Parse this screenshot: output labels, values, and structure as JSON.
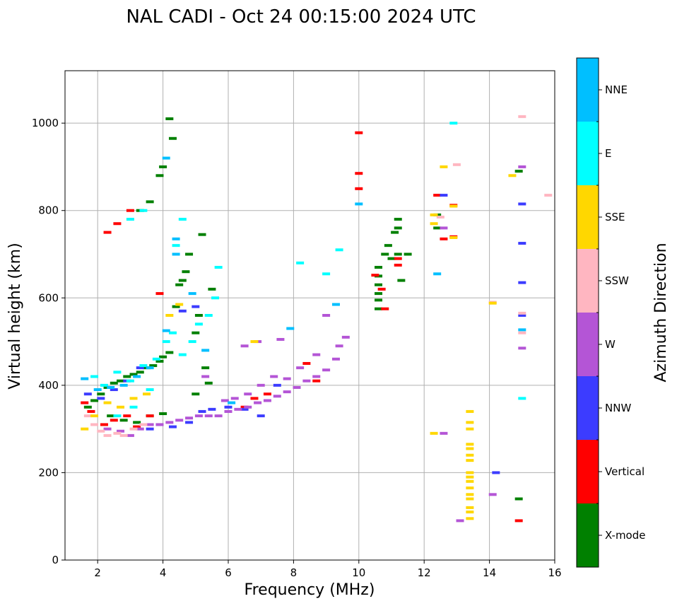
{
  "chart_data": {
    "type": "scatter",
    "title": "NAL CADI - Oct 24 00:15:00 2024 UTC",
    "xlabel": "Frequency (MHz)",
    "ylabel": "Virtual height (km)",
    "xlim": [
      1,
      16
    ],
    "ylim": [
      0,
      1120
    ],
    "xticks": [
      2,
      4,
      6,
      8,
      10,
      12,
      14,
      16
    ],
    "yticks": [
      0,
      200,
      400,
      600,
      800,
      1000
    ],
    "grid": true,
    "colorbar": {
      "label": "Azimuth Direction",
      "categories": [
        {
          "name": "X-mode",
          "color": "#008000"
        },
        {
          "name": "Vertical",
          "color": "#ff0000"
        },
        {
          "name": "NNW",
          "color": "#3c3cff"
        },
        {
          "name": "W",
          "color": "#b455d6"
        },
        {
          "name": "SSW",
          "color": "#ffb6c1"
        },
        {
          "name": "SSE",
          "color": "#ffd700"
        },
        {
          "name": "E",
          "color": "#00ffff"
        },
        {
          "name": "NNE",
          "color": "#00bfff"
        }
      ]
    },
    "series": [
      {
        "name": "X-mode",
        "points": [
          [
            1.7,
            350
          ],
          [
            1.9,
            365
          ],
          [
            2.1,
            380
          ],
          [
            2.3,
            395
          ],
          [
            2.5,
            405
          ],
          [
            2.7,
            410
          ],
          [
            2.9,
            420
          ],
          [
            3.1,
            425
          ],
          [
            3.3,
            430
          ],
          [
            3.5,
            440
          ],
          [
            3.7,
            445
          ],
          [
            3.9,
            455
          ],
          [
            4.0,
            465
          ],
          [
            4.2,
            475
          ],
          [
            2.4,
            330
          ],
          [
            2.8,
            320
          ],
          [
            3.2,
            315
          ],
          [
            3.6,
            330
          ],
          [
            4.0,
            335
          ],
          [
            3.3,
            800
          ],
          [
            3.6,
            820
          ],
          [
            4.0,
            900
          ],
          [
            4.2,
            1010
          ],
          [
            4.3,
            965
          ],
          [
            3.9,
            880
          ],
          [
            4.5,
            630
          ],
          [
            4.6,
            640
          ],
          [
            4.7,
            660
          ],
          [
            4.4,
            580
          ],
          [
            4.8,
            700
          ],
          [
            5.2,
            745
          ],
          [
            5.5,
            620
          ],
          [
            5.1,
            560
          ],
          [
            5.0,
            520
          ],
          [
            5.3,
            440
          ],
          [
            5.4,
            405
          ],
          [
            5.0,
            380
          ],
          [
            10.6,
            670
          ],
          [
            10.6,
            650
          ],
          [
            10.6,
            630
          ],
          [
            10.6,
            610
          ],
          [
            10.6,
            595
          ],
          [
            10.6,
            575
          ],
          [
            10.8,
            700
          ],
          [
            10.9,
            720
          ],
          [
            11.1,
            750
          ],
          [
            11.2,
            780
          ],
          [
            11.2,
            700
          ],
          [
            11.3,
            640
          ],
          [
            11.5,
            700
          ],
          [
            11.2,
            760
          ],
          [
            11.0,
            690
          ],
          [
            12.4,
            760
          ],
          [
            12.4,
            790
          ],
          [
            14.9,
            890
          ],
          [
            14.9,
            140
          ]
        ]
      },
      {
        "name": "Vertical",
        "points": [
          [
            1.6,
            360
          ],
          [
            1.8,
            340
          ],
          [
            2.2,
            310
          ],
          [
            2.5,
            320
          ],
          [
            2.9,
            330
          ],
          [
            3.2,
            305
          ],
          [
            3.6,
            330
          ],
          [
            3.9,
            610
          ],
          [
            2.3,
            750
          ],
          [
            2.6,
            770
          ],
          [
            3.0,
            800
          ],
          [
            6.5,
            350
          ],
          [
            6.8,
            370
          ],
          [
            7.2,
            380
          ],
          [
            8.4,
            450
          ],
          [
            8.7,
            410
          ],
          [
            10.0,
            978
          ],
          [
            10.0,
            885
          ],
          [
            10.0,
            850
          ],
          [
            10.5,
            652
          ],
          [
            10.7,
            620
          ],
          [
            10.8,
            575
          ],
          [
            11.2,
            690
          ],
          [
            11.2,
            675
          ],
          [
            12.4,
            835
          ],
          [
            12.6,
            735
          ],
          [
            12.9,
            740
          ],
          [
            12.9,
            812
          ],
          [
            14.9,
            90
          ]
        ]
      },
      {
        "name": "NNW",
        "points": [
          [
            1.7,
            380
          ],
          [
            2.1,
            370
          ],
          [
            2.5,
            390
          ],
          [
            2.9,
            410
          ],
          [
            3.3,
            440
          ],
          [
            3.6,
            300
          ],
          [
            3.9,
            310
          ],
          [
            4.3,
            305
          ],
          [
            4.8,
            315
          ],
          [
            5.2,
            340
          ],
          [
            5.5,
            345
          ],
          [
            6.0,
            350
          ],
          [
            6.5,
            345
          ],
          [
            7.0,
            330
          ],
          [
            7.5,
            400
          ],
          [
            4.6,
            570
          ],
          [
            5.0,
            580
          ],
          [
            12.6,
            835
          ],
          [
            14.2,
            200
          ],
          [
            15.0,
            815
          ],
          [
            15.0,
            725
          ],
          [
            15.0,
            635
          ],
          [
            15.0,
            560
          ]
        ]
      },
      {
        "name": "W",
        "points": [
          [
            2.3,
            300
          ],
          [
            2.7,
            295
          ],
          [
            3.0,
            285
          ],
          [
            3.3,
            300
          ],
          [
            3.6,
            310
          ],
          [
            3.9,
            310
          ],
          [
            4.2,
            315
          ],
          [
            4.5,
            320
          ],
          [
            4.8,
            325
          ],
          [
            5.1,
            330
          ],
          [
            5.4,
            330
          ],
          [
            5.7,
            330
          ],
          [
            6.0,
            340
          ],
          [
            6.3,
            345
          ],
          [
            6.6,
            350
          ],
          [
            6.9,
            360
          ],
          [
            7.2,
            365
          ],
          [
            7.5,
            375
          ],
          [
            7.8,
            385
          ],
          [
            8.1,
            395
          ],
          [
            8.4,
            410
          ],
          [
            8.7,
            420
          ],
          [
            9.0,
            435
          ],
          [
            9.3,
            460
          ],
          [
            9.6,
            510
          ],
          [
            9.4,
            490
          ],
          [
            9.0,
            560
          ],
          [
            8.7,
            470
          ],
          [
            8.2,
            440
          ],
          [
            7.8,
            415
          ],
          [
            7.4,
            420
          ],
          [
            7.0,
            400
          ],
          [
            6.6,
            380
          ],
          [
            6.2,
            370
          ],
          [
            5.9,
            365
          ],
          [
            6.5,
            490
          ],
          [
            6.9,
            500
          ],
          [
            7.6,
            505
          ],
          [
            5.3,
            420
          ],
          [
            12.6,
            290
          ],
          [
            12.6,
            760
          ],
          [
            13.1,
            90
          ],
          [
            14.1,
            150
          ],
          [
            15.0,
            900
          ],
          [
            15.0,
            485
          ]
        ]
      },
      {
        "name": "SSW",
        "points": [
          [
            1.7,
            330
          ],
          [
            1.9,
            310
          ],
          [
            2.1,
            295
          ],
          [
            2.3,
            285
          ],
          [
            2.6,
            290
          ],
          [
            2.8,
            285
          ],
          [
            3.1,
            300
          ],
          [
            3.4,
            310
          ],
          [
            15.0,
            1015
          ],
          [
            13.0,
            905
          ],
          [
            12.5,
            785
          ],
          [
            14.1,
            590
          ],
          [
            15.0,
            565
          ],
          [
            15.0,
            520
          ],
          [
            15.8,
            835
          ]
        ]
      },
      {
        "name": "SSE",
        "points": [
          [
            1.6,
            300
          ],
          [
            1.9,
            330
          ],
          [
            2.3,
            360
          ],
          [
            2.7,
            350
          ],
          [
            3.1,
            370
          ],
          [
            3.5,
            380
          ],
          [
            4.2,
            560
          ],
          [
            4.5,
            585
          ],
          [
            6.8,
            500
          ],
          [
            12.3,
            290
          ],
          [
            12.3,
            770
          ],
          [
            12.3,
            790
          ],
          [
            12.6,
            900
          ],
          [
            12.9,
            810
          ],
          [
            12.9,
            738
          ],
          [
            13.4,
            340
          ],
          [
            13.4,
            315
          ],
          [
            13.4,
            300
          ],
          [
            13.4,
            265
          ],
          [
            13.4,
            255
          ],
          [
            13.4,
            240
          ],
          [
            13.4,
            228
          ],
          [
            13.4,
            200
          ],
          [
            13.4,
            190
          ],
          [
            13.4,
            180
          ],
          [
            13.4,
            165
          ],
          [
            13.4,
            150
          ],
          [
            13.4,
            140
          ],
          [
            13.4,
            120
          ],
          [
            13.4,
            110
          ],
          [
            13.4,
            95
          ],
          [
            14.1,
            588
          ],
          [
            14.7,
            880
          ]
        ]
      },
      {
        "name": "E",
        "points": [
          [
            1.9,
            420
          ],
          [
            2.2,
            400
          ],
          [
            2.6,
            430
          ],
          [
            3.0,
            410
          ],
          [
            3.4,
            445
          ],
          [
            3.8,
            460
          ],
          [
            4.1,
            500
          ],
          [
            4.3,
            520
          ],
          [
            4.6,
            470
          ],
          [
            4.9,
            500
          ],
          [
            5.1,
            540
          ],
          [
            5.4,
            560
          ],
          [
            5.6,
            600
          ],
          [
            5.7,
            670
          ],
          [
            4.4,
            720
          ],
          [
            4.6,
            780
          ],
          [
            3.0,
            780
          ],
          [
            3.4,
            800
          ],
          [
            2.6,
            330
          ],
          [
            3.1,
            350
          ],
          [
            3.6,
            390
          ],
          [
            8.2,
            680
          ],
          [
            9.0,
            655
          ],
          [
            9.4,
            710
          ],
          [
            12.9,
            1000
          ],
          [
            15.0,
            370
          ]
        ]
      },
      {
        "name": "NNE",
        "points": [
          [
            1.6,
            415
          ],
          [
            2.0,
            390
          ],
          [
            2.4,
            395
          ],
          [
            2.8,
            400
          ],
          [
            3.2,
            420
          ],
          [
            3.6,
            440
          ],
          [
            4.1,
            525
          ],
          [
            4.1,
            920
          ],
          [
            4.4,
            735
          ],
          [
            4.4,
            700
          ],
          [
            4.9,
            610
          ],
          [
            5.3,
            480
          ],
          [
            6.1,
            360
          ],
          [
            7.9,
            530
          ],
          [
            9.3,
            585
          ],
          [
            10.0,
            815
          ],
          [
            12.4,
            655
          ],
          [
            15.0,
            527
          ]
        ]
      }
    ]
  }
}
